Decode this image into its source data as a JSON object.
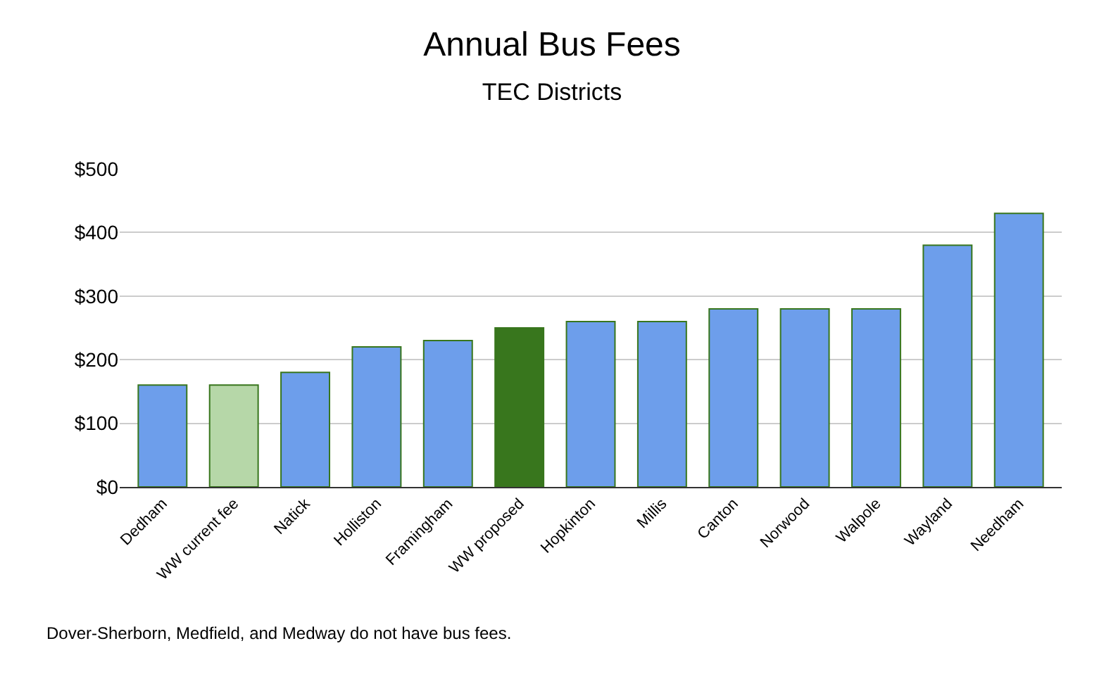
{
  "chart_data": {
    "type": "bar",
    "title": "Annual Bus Fees",
    "subtitle": "TEC Districts",
    "categories": [
      "Dedham",
      "WW current fee",
      "Natick",
      "Holliston",
      "Framingham",
      "WW proposed",
      "Hopkinton",
      "Millis",
      "Canton",
      "Norwood",
      "Walpole",
      "Wayland",
      "Needham"
    ],
    "values": [
      160,
      160,
      180,
      220,
      230,
      250,
      260,
      260,
      280,
      280,
      280,
      380,
      430
    ],
    "colors": [
      "#6d9eeb",
      "#b6d7a8",
      "#6d9eeb",
      "#6d9eeb",
      "#6d9eeb",
      "#38761d",
      "#6d9eeb",
      "#6d9eeb",
      "#6d9eeb",
      "#6d9eeb",
      "#6d9eeb",
      "#6d9eeb",
      "#6d9eeb"
    ],
    "ylim": [
      0,
      500
    ],
    "yticks": [
      {
        "value": 0,
        "label": "$0"
      },
      {
        "value": 100,
        "label": "$100"
      },
      {
        "value": 200,
        "label": "$200"
      },
      {
        "value": 300,
        "label": "$300"
      },
      {
        "value": 400,
        "label": "$400"
      },
      {
        "value": 500,
        "label": "$500"
      }
    ],
    "grid": "y",
    "legend": false,
    "annotations": [
      "Dover-Sherborn, Medfield, and Medway do not have bus fees."
    ]
  }
}
